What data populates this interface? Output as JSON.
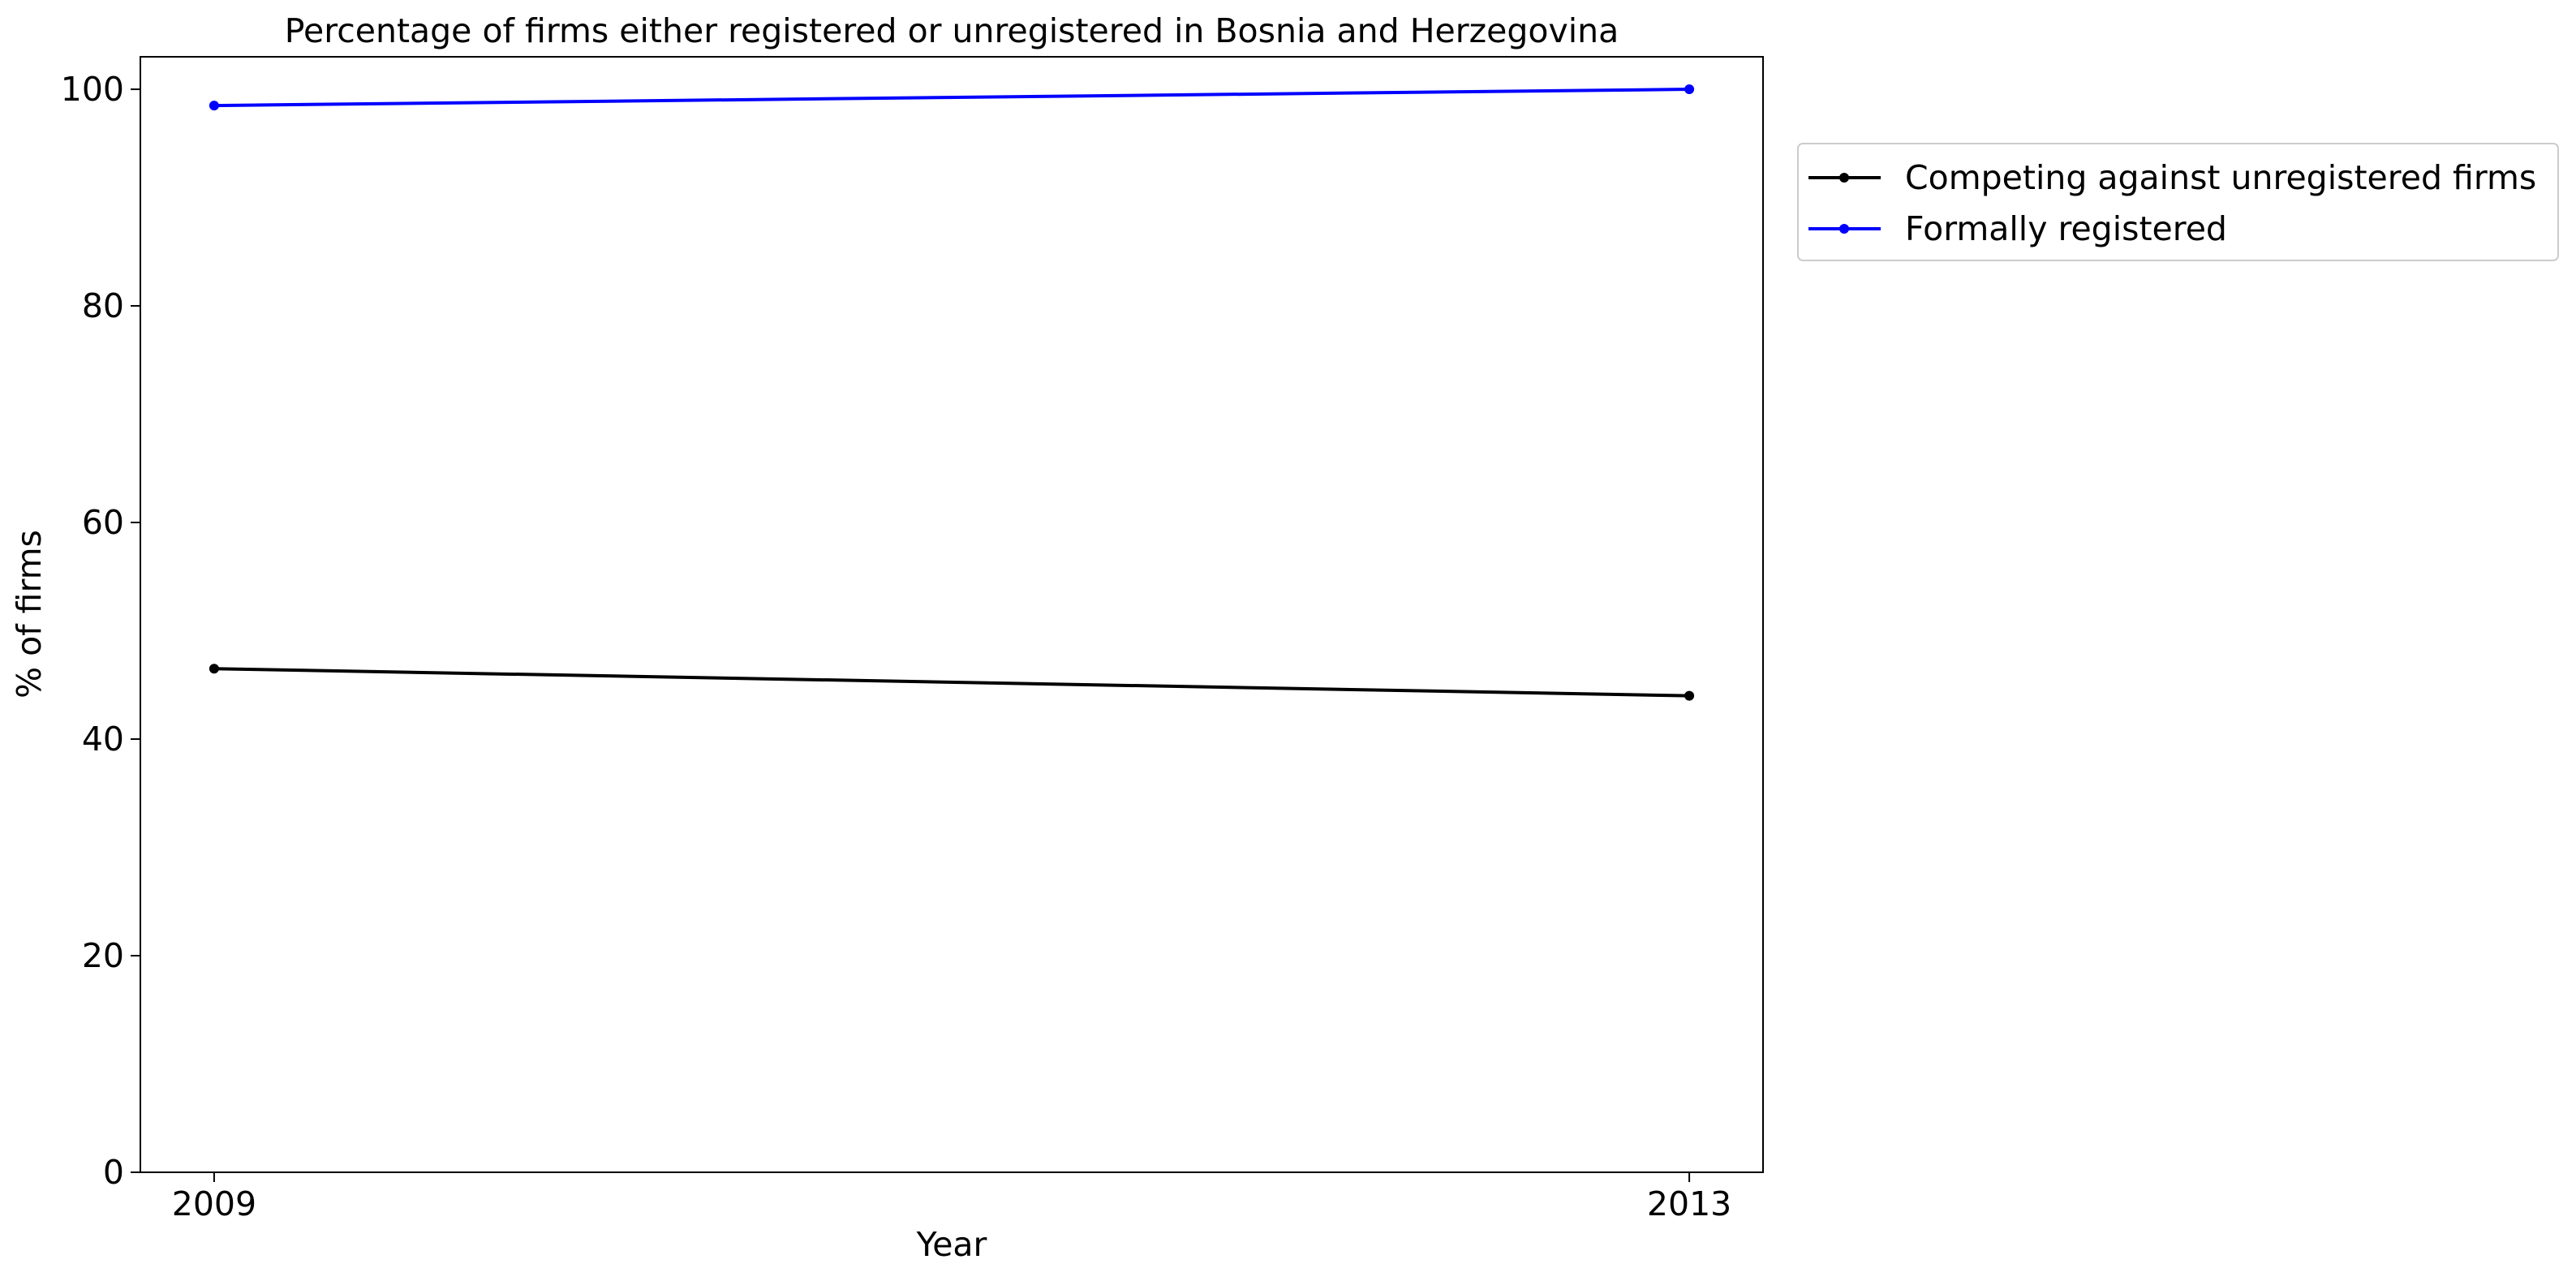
{
  "chart_data": {
    "type": "line",
    "title": "Percentage of firms either registered or unregistered in Bosnia and Herzegovina",
    "xlabel": "Year",
    "ylabel": "% of firms",
    "x": [
      2009,
      2013
    ],
    "x_tick_labels": [
      "2009",
      "2013"
    ],
    "xlim": [
      2008.8,
      2013.2
    ],
    "ylim": [
      0,
      103
    ],
    "y_ticks": [
      0,
      20,
      40,
      60,
      80,
      100
    ],
    "y_tick_labels": [
      "0",
      "20",
      "40",
      "60",
      "80",
      "100"
    ],
    "grid": false,
    "legend_position": "outside-right-top",
    "series": [
      {
        "name": "Competing against unregistered firms",
        "values": [
          46.5,
          44.0
        ],
        "color": "#000000"
      },
      {
        "name": "Formally registered",
        "values": [
          98.5,
          100.0
        ],
        "color": "#0000ff"
      }
    ]
  }
}
